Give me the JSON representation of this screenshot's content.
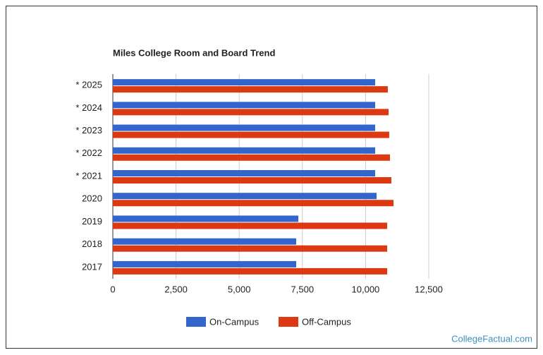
{
  "chart_data": {
    "type": "hbar",
    "title": "Miles College Room and Board Trend",
    "categories": [
      "* 2025",
      "* 2024",
      "* 2023",
      "* 2022",
      "* 2021",
      "2020",
      "2019",
      "2018",
      "2017"
    ],
    "series": [
      {
        "name": "On-Campus",
        "color": "#3366cc",
        "values": [
          10380,
          10380,
          10380,
          10380,
          10380,
          10435,
          7340,
          7255,
          7255
        ]
      },
      {
        "name": "Off-Campus",
        "color": "#dc3912",
        "values": [
          10880,
          10910,
          10935,
          10965,
          11020,
          11105,
          10855,
          10855,
          10855
        ]
      }
    ],
    "xlim": [
      0,
      12500
    ],
    "xticks": [
      0,
      {
        "value": 2500,
        "label": "2,500"
      },
      {
        "value": 5000,
        "label": "5,000"
      },
      {
        "value": 7500,
        "label": "7,500"
      },
      {
        "value": 10000,
        "label": "10,000"
      },
      {
        "value": 12500,
        "label": "12,500"
      }
    ],
    "grid": true,
    "legend": "bottom",
    "source": "CollegeFactual.com"
  }
}
